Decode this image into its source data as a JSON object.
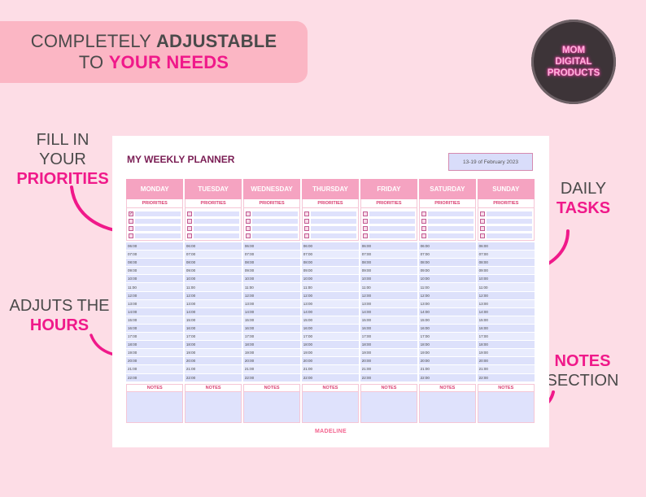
{
  "headline": {
    "line1_a": "COMPLETELY ",
    "line1_b": "ADJUSTABLE",
    "line2_a": "TO ",
    "line2_b": "YOUR NEEDS"
  },
  "badge": {
    "line1": "MOM",
    "line2": "DIGITAL",
    "line3": "PRODUCTS"
  },
  "callouts": {
    "priorities": {
      "line1": "FILL IN",
      "line2": "YOUR",
      "line3": "PRIORITIES"
    },
    "hours": {
      "line1": "ADJUTS THE",
      "line2": "HOURS"
    },
    "tasks": {
      "line1": "DAILY",
      "line2": "TASKS"
    },
    "notes": {
      "line1": "NOTES",
      "line2": "SECTION"
    }
  },
  "planner": {
    "title": "MY WEEKLY PLANNER",
    "date_range": "13-19 of February 2023",
    "priorities_label": "PRIORITIES",
    "notes_label": "NOTES",
    "brand": "MADELINE",
    "days": [
      {
        "name": "MONDAY",
        "checked": [
          true,
          false,
          false,
          false
        ]
      },
      {
        "name": "TUESDAY",
        "checked": [
          false,
          false,
          false,
          false
        ]
      },
      {
        "name": "WEDNESDAY",
        "checked": [
          false,
          false,
          false,
          false
        ]
      },
      {
        "name": "THURSDAY",
        "checked": [
          false,
          false,
          false,
          false
        ]
      },
      {
        "name": "FRIDAY",
        "checked": [
          false,
          false,
          false,
          false
        ]
      },
      {
        "name": "SATURDAY",
        "checked": [
          false,
          false,
          false,
          false
        ]
      },
      {
        "name": "SUNDAY",
        "checked": [
          false,
          false,
          false,
          false
        ]
      }
    ],
    "hours": [
      "06:00",
      "07:00",
      "08:00",
      "09:00",
      "10:00",
      "11:00",
      "12:00",
      "13:00",
      "14:00",
      "15:00",
      "16:00",
      "17:00",
      "18:00",
      "19:00",
      "20:00",
      "21:00",
      "22:00"
    ],
    "check_mark": "✓"
  },
  "colors": {
    "background": "#fddde6",
    "accent_pink": "#f0198a",
    "day_header": "#f5a3c1",
    "hour_fill": "#dde1fb"
  }
}
